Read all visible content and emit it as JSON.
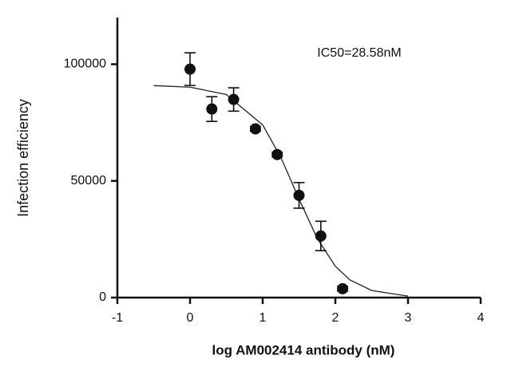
{
  "chart_data": {
    "type": "scatter",
    "annotation": "IC50=28.58nM",
    "x_label": "log AM002414 antibody (nM)",
    "y_label": "Infection efficiency",
    "x": [
      0,
      0.3,
      0.6,
      0.9,
      1.2,
      1.5,
      1.8,
      2.1
    ],
    "values": [
      97900,
      80800,
      84900,
      72300,
      61300,
      43800,
      26400,
      3800
    ],
    "errors": [
      7000,
      5300,
      5000,
      1000,
      1000,
      5500,
      6300,
      1000
    ],
    "color": "#111111",
    "fit": {
      "x": [
        -0.5,
        0,
        0.5,
        1.0,
        1.25,
        1.5,
        1.75,
        2.0,
        2.2,
        2.5,
        3.0
      ],
      "values": [
        90830,
        90170,
        87000,
        73980,
        60070,
        42270,
        25420,
        13420,
        7580,
        3040,
        620
      ]
    },
    "xlim": [
      -1,
      4
    ],
    "xticks": [
      -1,
      0,
      1,
      2,
      3,
      4
    ],
    "ylim": [
      0,
      120000
    ],
    "yticks": [
      0,
      50000,
      100000
    ],
    "grid": false
  }
}
